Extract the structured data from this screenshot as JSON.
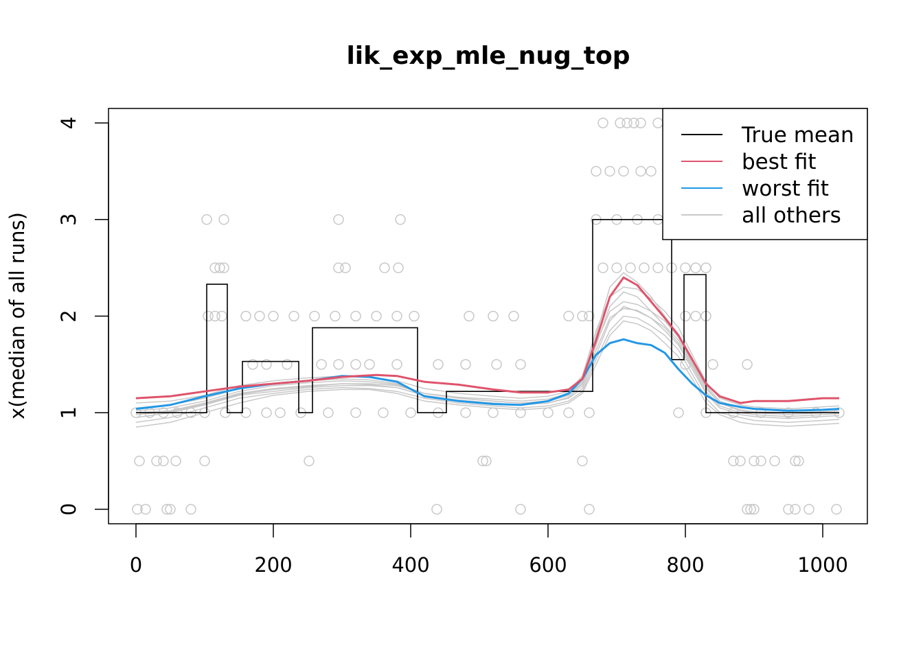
{
  "chart_data": {
    "type": "line",
    "title": "lik_exp_mle_nug_top",
    "xlabel": "",
    "ylabel": "x(median of all runs)",
    "xlim": [
      -40,
      1065
    ],
    "ylim": [
      -0.15,
      4.15
    ],
    "xticks": [
      0,
      200,
      400,
      600,
      800,
      1000
    ],
    "yticks": [
      0,
      1,
      2,
      3,
      4
    ],
    "legend_position": "top-right",
    "colors": {
      "true_mean": "#000000",
      "best_fit": "#DF536B",
      "worst_fit": "#2297E6",
      "all_others": "#C8C8C8",
      "points": "#C8C8C8"
    },
    "legend": [
      {
        "label": "True mean",
        "color": "#000000"
      },
      {
        "label": "best fit",
        "color": "#DF536B"
      },
      {
        "label": "worst fit",
        "color": "#2297E6"
      },
      {
        "label": "all others",
        "color": "#C8C8C8"
      }
    ],
    "true_mean": {
      "x": [
        0,
        103,
        103,
        133,
        133,
        155,
        155,
        237,
        237,
        257,
        257,
        410,
        410,
        452,
        452,
        665,
        665,
        780,
        780,
        798,
        798,
        830,
        830,
        1024
      ],
      "y": [
        1,
        1,
        2.33,
        2.33,
        1,
        1,
        1.53,
        1.53,
        1,
        1,
        1.88,
        1.88,
        1,
        1,
        1.22,
        1.22,
        3.0,
        3.0,
        1.55,
        1.55,
        2.43,
        2.43,
        1,
        1
      ]
    },
    "best_fit": {
      "x": [
        0,
        50,
        100,
        150,
        200,
        250,
        300,
        350,
        380,
        420,
        470,
        520,
        560,
        600,
        630,
        650,
        670,
        690,
        710,
        730,
        750,
        770,
        790,
        810,
        830,
        850,
        880,
        900,
        950,
        1000,
        1024
      ],
      "y": [
        1.15,
        1.17,
        1.22,
        1.27,
        1.3,
        1.33,
        1.37,
        1.39,
        1.38,
        1.32,
        1.29,
        1.24,
        1.21,
        1.21,
        1.24,
        1.35,
        1.75,
        2.2,
        2.4,
        2.32,
        2.15,
        1.98,
        1.8,
        1.55,
        1.3,
        1.17,
        1.1,
        1.12,
        1.12,
        1.15,
        1.15
      ]
    },
    "worst_fit": {
      "x": [
        0,
        50,
        100,
        150,
        200,
        250,
        300,
        340,
        380,
        420,
        470,
        520,
        560,
        600,
        630,
        650,
        670,
        690,
        710,
        730,
        750,
        770,
        790,
        810,
        830,
        850,
        880,
        900,
        950,
        1000,
        1024
      ],
      "y": [
        1.04,
        1.08,
        1.17,
        1.25,
        1.3,
        1.33,
        1.38,
        1.37,
        1.32,
        1.17,
        1.12,
        1.09,
        1.08,
        1.12,
        1.2,
        1.35,
        1.6,
        1.72,
        1.76,
        1.72,
        1.7,
        1.62,
        1.45,
        1.3,
        1.18,
        1.1,
        1.06,
        1.04,
        1.02,
        1.03,
        1.04
      ]
    },
    "all_others": {
      "x": [
        0,
        50,
        100,
        150,
        200,
        250,
        300,
        340,
        380,
        420,
        470,
        520,
        560,
        600,
        630,
        650,
        670,
        690,
        710,
        730,
        750,
        770,
        790,
        810,
        830,
        850,
        880,
        900,
        950,
        1000,
        1024
      ],
      "series": [
        [
          1.0,
          1.02,
          1.1,
          1.2,
          1.25,
          1.28,
          1.3,
          1.3,
          1.28,
          1.2,
          1.15,
          1.12,
          1.1,
          1.12,
          1.18,
          1.3,
          1.7,
          2.1,
          2.25,
          2.2,
          2.05,
          1.9,
          1.75,
          1.5,
          1.25,
          1.1,
          1.02,
          1.0,
          0.98,
          1.0,
          1.0
        ],
        [
          0.95,
          1.0,
          1.08,
          1.18,
          1.22,
          1.26,
          1.28,
          1.28,
          1.26,
          1.18,
          1.12,
          1.1,
          1.08,
          1.1,
          1.15,
          1.25,
          1.6,
          1.95,
          2.1,
          2.05,
          1.98,
          1.85,
          1.7,
          1.45,
          1.2,
          1.05,
          0.98,
          0.96,
          0.94,
          0.96,
          0.97
        ],
        [
          1.05,
          1.08,
          1.15,
          1.25,
          1.3,
          1.33,
          1.35,
          1.34,
          1.3,
          1.2,
          1.16,
          1.14,
          1.12,
          1.14,
          1.2,
          1.35,
          1.8,
          2.3,
          2.45,
          2.35,
          2.2,
          2.0,
          1.8,
          1.55,
          1.28,
          1.12,
          1.05,
          1.04,
          1.02,
          1.03,
          1.04
        ],
        [
          0.9,
          0.95,
          1.05,
          1.15,
          1.2,
          1.24,
          1.26,
          1.25,
          1.22,
          1.15,
          1.1,
          1.07,
          1.05,
          1.07,
          1.12,
          1.22,
          1.55,
          1.85,
          2.0,
          1.98,
          1.9,
          1.8,
          1.65,
          1.4,
          1.15,
          1.0,
          0.95,
          0.92,
          0.9,
          0.92,
          0.93
        ],
        [
          1.1,
          1.12,
          1.18,
          1.28,
          1.33,
          1.36,
          1.38,
          1.37,
          1.33,
          1.25,
          1.2,
          1.17,
          1.15,
          1.17,
          1.22,
          1.38,
          1.85,
          2.2,
          2.3,
          2.28,
          2.18,
          2.05,
          1.88,
          1.6,
          1.32,
          1.15,
          1.08,
          1.06,
          1.04,
          1.06,
          1.07
        ],
        [
          0.85,
          0.9,
          1.0,
          1.1,
          1.18,
          1.22,
          1.24,
          1.24,
          1.2,
          1.12,
          1.08,
          1.05,
          1.03,
          1.05,
          1.1,
          1.2,
          1.5,
          1.8,
          1.95,
          1.92,
          1.85,
          1.72,
          1.58,
          1.35,
          1.1,
          0.98,
          0.9,
          0.88,
          0.86,
          0.88,
          0.89
        ],
        [
          1.02,
          1.05,
          1.12,
          1.22,
          1.28,
          1.31,
          1.33,
          1.32,
          1.29,
          1.2,
          1.15,
          1.12,
          1.1,
          1.12,
          1.18,
          1.32,
          1.72,
          2.05,
          2.15,
          2.12,
          2.05,
          1.95,
          1.78,
          1.52,
          1.26,
          1.1,
          1.03,
          1.01,
          1.0,
          1.01,
          1.02
        ],
        [
          0.98,
          1.01,
          1.09,
          1.19,
          1.24,
          1.27,
          1.3,
          1.29,
          1.26,
          1.18,
          1.13,
          1.1,
          1.08,
          1.1,
          1.16,
          1.28,
          1.65,
          1.98,
          2.08,
          2.06,
          1.98,
          1.88,
          1.72,
          1.48,
          1.22,
          1.07,
          1.0,
          0.98,
          0.96,
          0.98,
          0.99
        ]
      ]
    },
    "points": [
      [
        2,
        0
      ],
      [
        14,
        0
      ],
      [
        45,
        0
      ],
      [
        50,
        0
      ],
      [
        80,
        0
      ],
      [
        438,
        0
      ],
      [
        560,
        0
      ],
      [
        660,
        0
      ],
      [
        890,
        0
      ],
      [
        895,
        0
      ],
      [
        900,
        0
      ],
      [
        950,
        0
      ],
      [
        960,
        0
      ],
      [
        980,
        0
      ],
      [
        1020,
        0
      ],
      [
        5,
        0.5
      ],
      [
        30,
        0.5
      ],
      [
        40,
        0.5
      ],
      [
        58,
        0.5
      ],
      [
        100,
        0.5
      ],
      [
        252,
        0.5
      ],
      [
        505,
        0.5
      ],
      [
        510,
        0.5
      ],
      [
        650,
        0.5
      ],
      [
        870,
        0.5
      ],
      [
        880,
        0.5
      ],
      [
        900,
        0.5
      ],
      [
        910,
        0.5
      ],
      [
        930,
        0.5
      ],
      [
        960,
        0.5
      ],
      [
        965,
        0.5
      ],
      [
        0,
        1
      ],
      [
        20,
        1
      ],
      [
        40,
        1
      ],
      [
        60,
        1
      ],
      [
        80,
        1
      ],
      [
        100,
        1
      ],
      [
        130,
        1
      ],
      [
        160,
        1
      ],
      [
        190,
        1
      ],
      [
        210,
        1
      ],
      [
        240,
        1
      ],
      [
        280,
        1
      ],
      [
        320,
        1
      ],
      [
        360,
        1
      ],
      [
        400,
        1
      ],
      [
        440,
        1
      ],
      [
        480,
        1
      ],
      [
        520,
        1
      ],
      [
        560,
        1
      ],
      [
        600,
        1
      ],
      [
        630,
        1
      ],
      [
        660,
        1
      ],
      [
        790,
        1
      ],
      [
        830,
        1
      ],
      [
        870,
        1
      ],
      [
        910,
        1
      ],
      [
        950,
        1
      ],
      [
        990,
        1
      ],
      [
        1024,
        1
      ],
      [
        295,
        1.5
      ],
      [
        340,
        1.5
      ],
      [
        380,
        1.5
      ],
      [
        440,
        1.5
      ],
      [
        480,
        1.5
      ],
      [
        525,
        1.5
      ],
      [
        560,
        1.5
      ],
      [
        800,
        1.5
      ],
      [
        840,
        1.5
      ],
      [
        890,
        1.5
      ],
      [
        170,
        1.5
      ],
      [
        190,
        1.5
      ],
      [
        220,
        1.5
      ],
      [
        270,
        1.5
      ],
      [
        320,
        1.5
      ],
      [
        105,
        2
      ],
      [
        115,
        2
      ],
      [
        125,
        2
      ],
      [
        160,
        2
      ],
      [
        180,
        2
      ],
      [
        200,
        2
      ],
      [
        230,
        2
      ],
      [
        260,
        2
      ],
      [
        290,
        2
      ],
      [
        320,
        2
      ],
      [
        350,
        2
      ],
      [
        380,
        2
      ],
      [
        405,
        2
      ],
      [
        485,
        2
      ],
      [
        520,
        2
      ],
      [
        550,
        2
      ],
      [
        630,
        2
      ],
      [
        650,
        2
      ],
      [
        660,
        2
      ],
      [
        800,
        2
      ],
      [
        815,
        2
      ],
      [
        830,
        2
      ],
      [
        115,
        2.5
      ],
      [
        122,
        2.5
      ],
      [
        128,
        2.5
      ],
      [
        295,
        2.5
      ],
      [
        305,
        2.5
      ],
      [
        362,
        2.5
      ],
      [
        382,
        2.5
      ],
      [
        680,
        2.5
      ],
      [
        700,
        2.5
      ],
      [
        720,
        2.5
      ],
      [
        740,
        2.5
      ],
      [
        760,
        2.5
      ],
      [
        780,
        2.5
      ],
      [
        800,
        2.5
      ],
      [
        815,
        2.5
      ],
      [
        830,
        2.5
      ],
      [
        103,
        3
      ],
      [
        128,
        3
      ],
      [
        295,
        3
      ],
      [
        385,
        3
      ],
      [
        670,
        3
      ],
      [
        700,
        3
      ],
      [
        730,
        3
      ],
      [
        760,
        3
      ],
      [
        670,
        3.5
      ],
      [
        690,
        3.5
      ],
      [
        710,
        3.5
      ],
      [
        735,
        3.5
      ],
      [
        750,
        3.5
      ],
      [
        680,
        4
      ],
      [
        705,
        4
      ],
      [
        715,
        4
      ],
      [
        725,
        4
      ],
      [
        735,
        4
      ],
      [
        760,
        4
      ]
    ]
  }
}
